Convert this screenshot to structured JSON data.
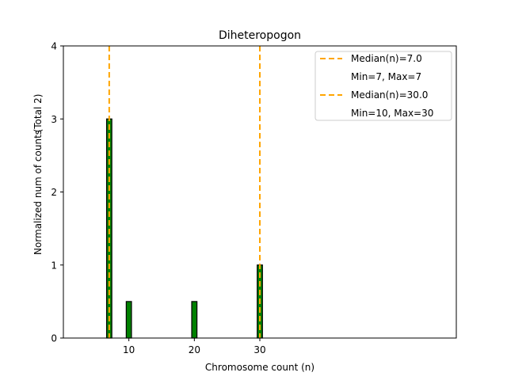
{
  "chart_data": {
    "type": "bar",
    "title": "Diheteropogon",
    "xlabel": "Chromosome count (n)",
    "ylabel": "Normalized num of counts",
    "ylabel2": "(Total 2)",
    "xlim": [
      0,
      60
    ],
    "ylim": [
      0,
      4
    ],
    "xticks": [
      10,
      20,
      30
    ],
    "yticks": [
      0,
      1,
      2,
      3,
      4
    ],
    "bar_width": 0.8,
    "bar_color": "#008000",
    "bars": [
      {
        "x": 7,
        "value": 3
      },
      {
        "x": 10,
        "value": 0.5
      },
      {
        "x": 20,
        "value": 0.5
      },
      {
        "x": 30,
        "value": 1
      }
    ],
    "median_lines": [
      {
        "x": 7,
        "color": "#FFA500",
        "label": "Median(n)=7.0",
        "sublabel": "Min=7, Max=7"
      },
      {
        "x": 30,
        "color": "#FFA500",
        "label": "Median(n)=30.0",
        "sublabel": "Min=10, Max=30"
      }
    ],
    "legend_position": "top-right",
    "grid": false
  }
}
